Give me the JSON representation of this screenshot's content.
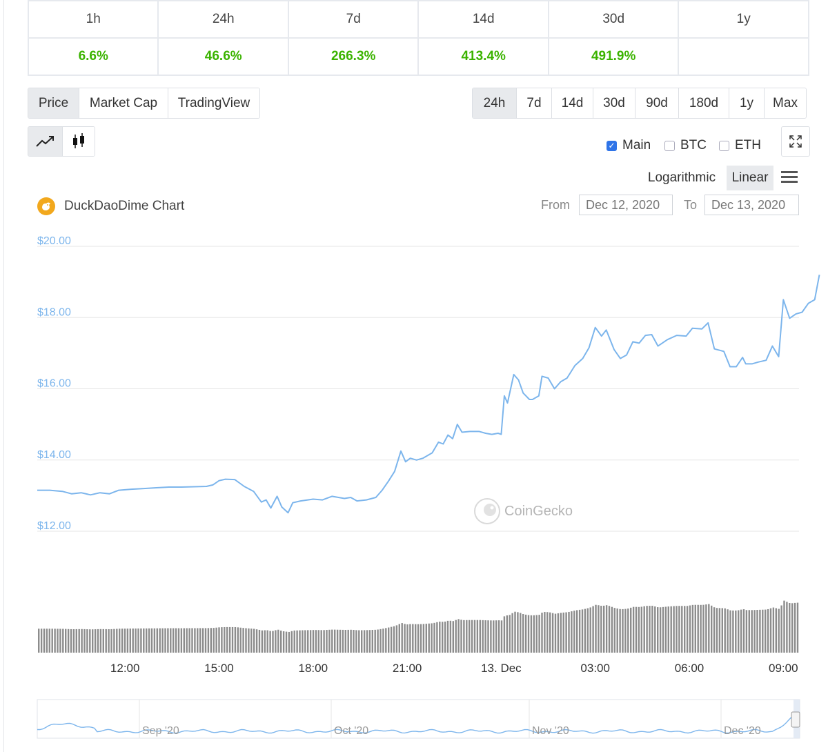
{
  "performance": {
    "headers": [
      "1h",
      "24h",
      "7d",
      "14d",
      "30d",
      "1y"
    ],
    "values": [
      "6.6%",
      "46.6%",
      "266.3%",
      "413.4%",
      "491.9%",
      ""
    ]
  },
  "view_tabs": [
    "Price",
    "Market Cap",
    "TradingView"
  ],
  "active_view_tab": "Price",
  "range_tabs": [
    "24h",
    "7d",
    "14d",
    "30d",
    "90d",
    "180d",
    "1y",
    "Max"
  ],
  "active_range_tab": "24h",
  "compare": [
    {
      "label": "Main",
      "checked": true
    },
    {
      "label": "BTC",
      "checked": false
    },
    {
      "label": "ETH",
      "checked": false
    }
  ],
  "scale_options": [
    "Logarithmic",
    "Linear"
  ],
  "active_scale": "Linear",
  "chart_title": "DuckDaoDime Chart",
  "date_range": {
    "from_label": "From",
    "from_value": "Dec 12, 2020",
    "to_label": "To",
    "to_value": "Dec 13, 2020"
  },
  "watermark": "CoinGecko",
  "icons": {
    "line": "line-chart-icon",
    "candle": "candlestick-icon",
    "fullscreen": "expand-icon",
    "menu": "hamburger-menu-icon",
    "logo": "duckdao-logo-icon"
  },
  "colors": {
    "line": "#7cb5ec",
    "up": "#3bb300",
    "volume": "#8c8c8c",
    "active_bg": "#e8eaed"
  },
  "chart_data": {
    "type": "line",
    "title": "DuckDaoDime Chart",
    "series": [],
    "y_ticks": [
      "$20.00",
      "$18.00",
      "$16.00",
      "$14.00",
      "$12.00"
    ],
    "ylim": [
      12,
      20
    ],
    "x_ticks": [
      "12:00",
      "15:00",
      "18:00",
      "21:00",
      "13. Dec",
      "03:00",
      "06:00",
      "09:00"
    ],
    "x_tick_hours": [
      12,
      15,
      18,
      21,
      24,
      27,
      30,
      33
    ],
    "xlim_hours": [
      9.2,
      33.5
    ],
    "price": [
      [
        9.2,
        13.15
      ],
      [
        9.6,
        13.15
      ],
      [
        10.0,
        13.12
      ],
      [
        10.3,
        13.05
      ],
      [
        10.6,
        13.08
      ],
      [
        10.9,
        13.02
      ],
      [
        11.2,
        13.08
      ],
      [
        11.5,
        13.05
      ],
      [
        11.8,
        13.15
      ],
      [
        12.2,
        13.18
      ],
      [
        12.6,
        13.2
      ],
      [
        13.0,
        13.22
      ],
      [
        13.4,
        13.24
      ],
      [
        13.8,
        13.24
      ],
      [
        14.2,
        13.25
      ],
      [
        14.6,
        13.26
      ],
      [
        14.8,
        13.3
      ],
      [
        15.0,
        13.42
      ],
      [
        15.2,
        13.46
      ],
      [
        15.5,
        13.45
      ],
      [
        15.8,
        13.26
      ],
      [
        16.1,
        13.12
      ],
      [
        16.35,
        12.82
      ],
      [
        16.5,
        12.88
      ],
      [
        16.65,
        12.65
      ],
      [
        16.85,
        12.98
      ],
      [
        17.0,
        12.68
      ],
      [
        17.2,
        12.52
      ],
      [
        17.35,
        12.8
      ],
      [
        17.6,
        12.85
      ],
      [
        18.0,
        12.9
      ],
      [
        18.3,
        12.88
      ],
      [
        18.6,
        12.98
      ],
      [
        19.0,
        12.92
      ],
      [
        19.2,
        12.95
      ],
      [
        19.4,
        12.85
      ],
      [
        19.7,
        12.88
      ],
      [
        20.0,
        12.95
      ],
      [
        20.2,
        13.15
      ],
      [
        20.4,
        13.4
      ],
      [
        20.6,
        13.68
      ],
      [
        20.8,
        14.25
      ],
      [
        20.95,
        13.95
      ],
      [
        21.1,
        14.05
      ],
      [
        21.3,
        14.0
      ],
      [
        21.5,
        14.05
      ],
      [
        21.8,
        14.2
      ],
      [
        22.0,
        14.5
      ],
      [
        22.15,
        14.45
      ],
      [
        22.3,
        14.7
      ],
      [
        22.45,
        14.6
      ],
      [
        22.6,
        15.0
      ],
      [
        22.75,
        14.78
      ],
      [
        23.0,
        14.8
      ],
      [
        23.3,
        14.8
      ],
      [
        23.5,
        14.75
      ],
      [
        23.7,
        14.72
      ],
      [
        23.9,
        14.75
      ],
      [
        24.0,
        14.72
      ],
      [
        24.1,
        15.8
      ],
      [
        24.2,
        15.6
      ],
      [
        24.4,
        16.4
      ],
      [
        24.55,
        16.25
      ],
      [
        24.7,
        15.88
      ],
      [
        24.9,
        15.7
      ],
      [
        25.0,
        15.7
      ],
      [
        25.2,
        15.8
      ],
      [
        25.3,
        16.35
      ],
      [
        25.5,
        16.3
      ],
      [
        25.7,
        16.0
      ],
      [
        25.9,
        16.2
      ],
      [
        26.1,
        16.3
      ],
      [
        26.35,
        16.65
      ],
      [
        26.6,
        16.85
      ],
      [
        26.8,
        17.15
      ],
      [
        27.0,
        17.72
      ],
      [
        27.2,
        17.48
      ],
      [
        27.35,
        17.65
      ],
      [
        27.6,
        17.1
      ],
      [
        27.8,
        16.85
      ],
      [
        28.0,
        16.95
      ],
      [
        28.2,
        17.32
      ],
      [
        28.4,
        17.28
      ],
      [
        28.6,
        17.5
      ],
      [
        28.8,
        17.52
      ],
      [
        29.0,
        17.2
      ],
      [
        29.3,
        17.38
      ],
      [
        29.6,
        17.5
      ],
      [
        29.9,
        17.48
      ],
      [
        30.1,
        17.7
      ],
      [
        30.4,
        17.68
      ],
      [
        30.6,
        17.85
      ],
      [
        30.8,
        17.12
      ],
      [
        31.1,
        17.05
      ],
      [
        31.3,
        16.62
      ],
      [
        31.5,
        16.62
      ],
      [
        31.7,
        16.88
      ],
      [
        31.8,
        16.7
      ],
      [
        32.0,
        16.7
      ],
      [
        32.2,
        16.75
      ],
      [
        32.45,
        16.8
      ],
      [
        32.65,
        17.2
      ],
      [
        32.85,
        16.9
      ],
      [
        33.0,
        18.5
      ],
      [
        33.2,
        17.98
      ],
      [
        33.4,
        18.1
      ],
      [
        33.6,
        18.15
      ],
      [
        33.8,
        18.4
      ],
      [
        34.0,
        18.5
      ],
      [
        34.15,
        19.2
      ]
    ],
    "navigator_x_ticks": [
      "Sep '20",
      "Oct '20",
      "Nov '20",
      "Dec '20"
    ]
  }
}
